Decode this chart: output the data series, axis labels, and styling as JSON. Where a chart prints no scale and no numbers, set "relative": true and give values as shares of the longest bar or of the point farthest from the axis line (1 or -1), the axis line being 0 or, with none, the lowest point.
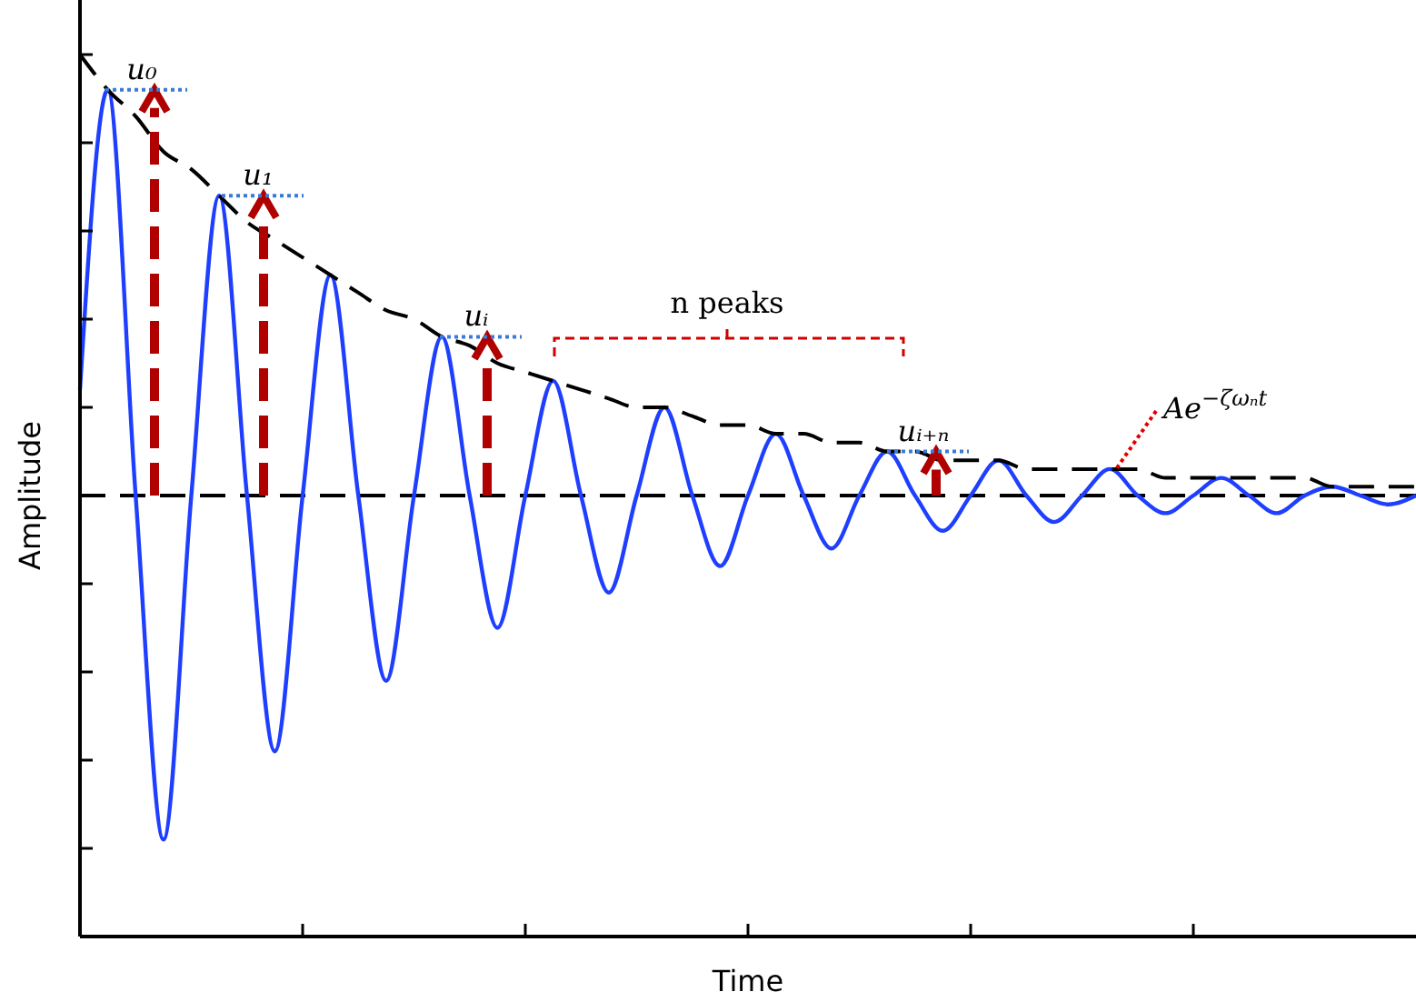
{
  "chart_data": {
    "type": "line",
    "relative": true,
    "xlabel": "Time",
    "ylabel": "Amplitude",
    "marker": "none",
    "categories": [
      null,
      null,
      null,
      null,
      null,
      null,
      null,
      null,
      null,
      null,
      null,
      null,
      null,
      null,
      null,
      null,
      null,
      null,
      null,
      null,
      null,
      null,
      null,
      null,
      null,
      null,
      null,
      null,
      null,
      null,
      null,
      null,
      null,
      null,
      null,
      null,
      null,
      null,
      null,
      null,
      null,
      null,
      null,
      null,
      null,
      null,
      null,
      null,
      null
    ],
    "series": [
      {
        "color": "#1f3fff",
        "line_style": "solid",
        "values": [
          0.62,
          0.96,
          0.5,
          0.11,
          0.5,
          0.84,
          0.5,
          0.21,
          0.5,
          0.75,
          0.5,
          0.29,
          0.5,
          0.68,
          0.5,
          0.35,
          0.5,
          0.63,
          0.5,
          0.39,
          0.5,
          0.6,
          0.5,
          0.42,
          0.5,
          0.57,
          0.5,
          0.44,
          0.5,
          0.55,
          0.5,
          0.46,
          0.5,
          0.54,
          0.5,
          0.47,
          0.5,
          0.53,
          0.5,
          0.48,
          0.5,
          0.52,
          0.5,
          0.48,
          0.5,
          0.51,
          0.5,
          0.49,
          0.5
        ]
      },
      {
        "color": "#000000",
        "line_style": "dashed",
        "values": [
          1.0,
          0.96,
          0.93,
          0.89,
          0.87,
          0.84,
          0.81,
          0.79,
          0.77,
          0.75,
          0.73,
          0.71,
          0.7,
          0.68,
          0.67,
          0.65,
          0.64,
          0.63,
          0.62,
          0.61,
          0.6,
          0.6,
          0.59,
          0.58,
          0.58,
          0.57,
          0.57,
          0.56,
          0.56,
          0.55,
          0.55,
          0.54,
          0.54,
          0.54,
          0.53,
          0.53,
          0.53,
          0.53,
          0.53,
          0.52,
          0.52,
          0.52,
          0.52,
          0.52,
          0.52,
          0.51,
          0.51,
          0.51,
          0.51
        ]
      }
    ],
    "ref_lines": [
      {
        "axis": "y",
        "value": 0.5,
        "color": "#000000",
        "line_style": "dashed"
      }
    ],
    "annotations": [
      "u₀",
      "u₁",
      "uᵢ",
      "uᵢ₊ₙ",
      "n peaks",
      "Ae$^{−ζωₙt}$"
    ]
  }
}
